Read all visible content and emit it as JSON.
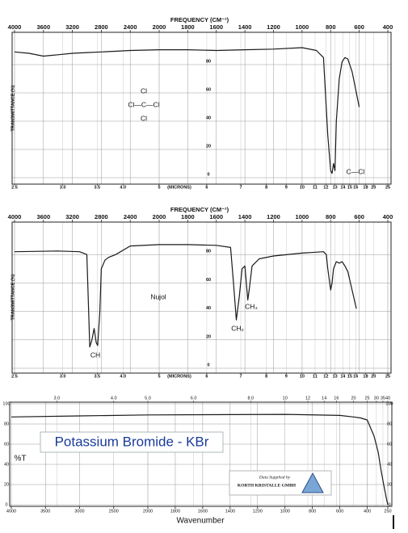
{
  "chart_data": [
    {
      "type": "line",
      "xlabel": "FREQUENCY (CM⁻¹)",
      "x2label": "(MICRONS)",
      "ylabel": "TRANSMITTANCE (%)",
      "xlim": [
        4000,
        400
      ],
      "xticks": [
        4000,
        3600,
        3200,
        2800,
        2400,
        2000,
        1800,
        1600,
        1400,
        1200,
        1000,
        800,
        600,
        400
      ],
      "x2ticks": [
        2.5,
        {
          "value": 3,
          "label": "3.0"
        },
        3.5,
        {
          "value": 4,
          "label": "4.0"
        },
        5,
        6,
        7,
        8,
        9,
        10,
        11,
        12,
        13,
        14,
        15,
        16,
        18,
        20,
        25
      ],
      "ylim": [
        0,
        100
      ],
      "yticks": [
        0,
        20,
        40,
        60,
        80
      ],
      "grid": true,
      "color": "#1a1a1a",
      "x": [
        4000,
        3800,
        3600,
        3500,
        3400,
        3200,
        3000,
        2800,
        2400,
        2000,
        1800,
        1600,
        1400,
        1200,
        1000,
        900,
        850,
        820,
        800,
        790,
        780,
        770,
        760,
        740,
        720,
        700,
        680,
        650,
        620,
        600
      ],
      "values": [
        89,
        88,
        86,
        86.5,
        87,
        88,
        88.5,
        89,
        90,
        90.5,
        90.5,
        90,
        90.5,
        91,
        92,
        90,
        85,
        30,
        5,
        3,
        10,
        5,
        40,
        70,
        82,
        85,
        84,
        75,
        60,
        50
      ],
      "annotations": [
        "Cl",
        "Cl—C—Cl",
        "Cl",
        "C—Cl"
      ]
    },
    {
      "type": "line",
      "xlabel": "FREQUENCY (CM⁻¹)",
      "x2label": "(MICRONS)",
      "ylabel": "TRANSMITTANCE (%)",
      "xlim": [
        4000,
        400
      ],
      "xticks": [
        4000,
        3600,
        3200,
        2800,
        2400,
        2000,
        1800,
        1600,
        1400,
        1200,
        1000,
        800,
        600,
        400
      ],
      "x2ticks": [
        2.5,
        {
          "value": 3,
          "label": "3.0"
        },
        3.5,
        {
          "value": 4,
          "label": "4.0"
        },
        5,
        6,
        7,
        8,
        9,
        10,
        11,
        12,
        13,
        14,
        15,
        16,
        18,
        20,
        25
      ],
      "ylim": [
        0,
        100
      ],
      "yticks": [
        0,
        20,
        40,
        60,
        80
      ],
      "grid": true,
      "color": "#1a1a1a",
      "x": [
        4000,
        3400,
        3100,
        3000,
        2960,
        2930,
        2900,
        2870,
        2850,
        2820,
        2800,
        2750,
        2700,
        2600,
        2400,
        2000,
        1800,
        1600,
        1500,
        1480,
        1460,
        1440,
        1420,
        1400,
        1380,
        1370,
        1350,
        1300,
        1200,
        1000,
        850,
        830,
        820,
        800,
        790,
        780,
        760,
        740,
        720,
        700,
        680,
        650,
        620
      ],
      "values": [
        82,
        82.5,
        82,
        80,
        15,
        20,
        28,
        18,
        16,
        40,
        70,
        76,
        78,
        80,
        86,
        87,
        87,
        86.5,
        85,
        60,
        34,
        50,
        70,
        72,
        48,
        55,
        72,
        77,
        79,
        81,
        82,
        80,
        70,
        55,
        60,
        70,
        75,
        74,
        75,
        72,
        68,
        55,
        42
      ],
      "annotations": [
        "Nujol",
        "CH",
        "CH₂",
        "CH₃"
      ]
    },
    {
      "type": "line",
      "title": "Potassium Bromide - KBr",
      "xlabel": "Wavenumber",
      "ylabel": "%T",
      "xlim": [
        4000,
        250
      ],
      "xticks": [
        4000,
        3500,
        3000,
        2500,
        2000,
        1800,
        1600,
        1400,
        1200,
        1000,
        800,
        600,
        400,
        250
      ],
      "x2ticks": [
        {
          "value": 3,
          "label": "3.0"
        },
        {
          "value": 4,
          "label": "4.0"
        },
        {
          "value": 5,
          "label": "5.0"
        },
        {
          "value": 6,
          "label": "6.0"
        },
        {
          "value": 8,
          "label": "8.0"
        },
        10,
        12,
        14,
        16,
        20,
        25,
        30,
        35,
        40
      ],
      "ylim": [
        0,
        100
      ],
      "yticks": [
        0,
        20,
        40,
        60,
        80,
        100
      ],
      "grid": true,
      "color": "#1a1a1a",
      "x": [
        4000,
        3000,
        2000,
        1000,
        600,
        500,
        450,
        400,
        350,
        320,
        300,
        280,
        260,
        250
      ],
      "values": [
        87,
        88,
        89,
        89.5,
        88.5,
        87,
        86,
        84,
        68,
        52,
        35,
        20,
        6,
        0
      ],
      "annotations": [
        "Data Supplied by",
        "KORTH KRISTALLE GMBH"
      ]
    }
  ]
}
